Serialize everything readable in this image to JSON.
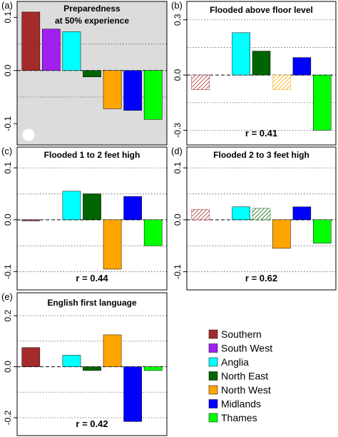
{
  "legend": [
    {
      "name": "Southern",
      "color": "#a52a2a"
    },
    {
      "name": "South West",
      "color": "#a020f0"
    },
    {
      "name": "Anglia",
      "color": "#00ffff"
    },
    {
      "name": "North East",
      "color": "#006400"
    },
    {
      "name": "North West",
      "color": "#ffa500"
    },
    {
      "name": "Midlands",
      "color": "#0000ff"
    },
    {
      "name": "Thames",
      "color": "#00ff00"
    }
  ],
  "chart_data": [
    {
      "type": "bar",
      "panel_label": "(a)",
      "title_lines": [
        "Preparedness",
        "at 50% experience"
      ],
      "categories": [
        "Southern",
        "South West",
        "Anglia",
        "North East",
        "North West",
        "Midlands",
        "Thames"
      ],
      "values": [
        0.11,
        0.078,
        0.073,
        -0.012,
        -0.072,
        -0.075,
        -0.092
      ],
      "hatched": [
        false,
        false,
        false,
        false,
        false,
        false,
        false
      ],
      "yticks": [
        -0.1,
        0.0,
        0.1
      ],
      "ytick_labels": [
        "-0.1",
        "0.0",
        "0.1"
      ],
      "ylim": [
        -0.14,
        0.13
      ],
      "grid": [
        -0.05,
        0.05
      ],
      "r_label": "",
      "background": "#dcdcdc",
      "marker": true
    },
    {
      "type": "bar",
      "panel_label": "(b)",
      "title_lines": [
        "Flooded above floor level"
      ],
      "categories": [
        "Southern",
        "South West",
        "Anglia",
        "North East",
        "North West",
        "Midlands",
        "Thames"
      ],
      "values": [
        -0.08,
        0.0,
        0.23,
        0.13,
        -0.08,
        0.095,
        -0.3
      ],
      "hatched": [
        true,
        false,
        false,
        false,
        true,
        false,
        false
      ],
      "yticks": [
        -0.3,
        0.0,
        0.3
      ],
      "ytick_labels": [
        "-0.3",
        "0.0",
        "0.3"
      ],
      "ylim": [
        -0.38,
        0.4
      ],
      "grid": [
        -0.3,
        -0.15,
        0.15,
        0.3
      ],
      "r_label": "r =  0.41",
      "background": "#ffffff",
      "marker": false
    },
    {
      "type": "bar",
      "panel_label": "(c)",
      "title_lines": [
        "Flooded 1 to 2 feet high"
      ],
      "categories": [
        "Southern",
        "South West",
        "Anglia",
        "North East",
        "North West",
        "Midlands",
        "Thames"
      ],
      "values": [
        -0.002,
        0.0,
        0.055,
        0.05,
        -0.095,
        0.045,
        -0.05
      ],
      "hatched": [
        false,
        false,
        false,
        false,
        false,
        false,
        false
      ],
      "yticks": [
        -0.1,
        0.0,
        0.1
      ],
      "ytick_labels": [
        "-0.1",
        "0.0",
        "0.1"
      ],
      "ylim": [
        -0.135,
        0.14
      ],
      "grid": [
        -0.1,
        -0.05,
        0.05,
        0.1
      ],
      "r_label": "r =  0.44",
      "background": "#ffffff",
      "marker": false
    },
    {
      "type": "bar",
      "panel_label": "(d)",
      "title_lines": [
        "Flooded 2 to 3 feet high"
      ],
      "categories": [
        "Southern",
        "South West",
        "Anglia",
        "North East",
        "North West",
        "Midlands",
        "Thames"
      ],
      "values": [
        0.02,
        0.0,
        0.025,
        0.022,
        -0.055,
        0.025,
        -0.045
      ],
      "hatched": [
        true,
        false,
        false,
        true,
        false,
        false,
        false
      ],
      "yticks": [
        -0.1,
        0.0,
        0.1
      ],
      "ytick_labels": [
        "-0.1",
        "0.0",
        "0.1"
      ],
      "ylim": [
        -0.135,
        0.14
      ],
      "grid": [
        -0.1,
        -0.05,
        0.05,
        0.1
      ],
      "r_label": "r =  0.62",
      "background": "#ffffff",
      "marker": false
    },
    {
      "type": "bar",
      "panel_label": "(e)",
      "title_lines": [
        "English first language"
      ],
      "categories": [
        "Southern",
        "South West",
        "Anglia",
        "North East",
        "North West",
        "Midlands",
        "Thames"
      ],
      "values": [
        0.075,
        0.0,
        0.045,
        -0.015,
        0.125,
        -0.215,
        -0.015
      ],
      "hatched": [
        false,
        false,
        false,
        false,
        false,
        false,
        false
      ],
      "yticks": [
        -0.2,
        0.0,
        0.2
      ],
      "ytick_labels": [
        "-0.2",
        "0.0",
        "0.2"
      ],
      "ylim": [
        -0.27,
        0.29
      ],
      "grid": [
        -0.2,
        -0.1,
        0.1,
        0.2
      ],
      "r_label": "r =  0.42",
      "background": "#ffffff",
      "marker": false
    }
  ]
}
